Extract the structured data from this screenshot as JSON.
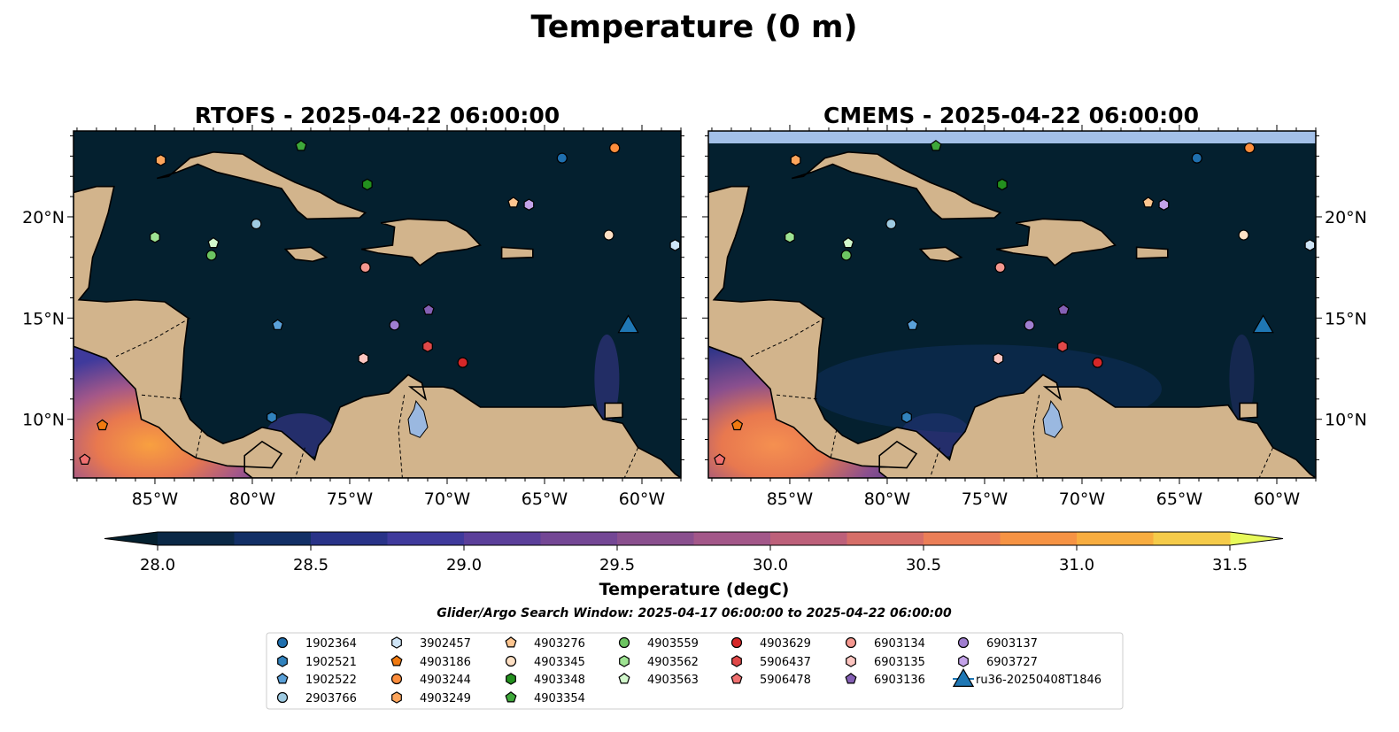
{
  "figure_title": "Temperature (0 m)",
  "panels": [
    {
      "title": "RTOFS - 2025-04-22 06:00:00",
      "model": "RTOFS",
      "nodata_strip": false
    },
    {
      "title": "CMEMS - 2025-04-22 06:00:00",
      "model": "CMEMS",
      "nodata_strip": true
    }
  ],
  "map_extent": {
    "lon": [
      -89.18,
      -58.0
    ],
    "lat": [
      7.1,
      24.24
    ]
  },
  "x_ticks": [
    {
      "lon": -85,
      "label": "85°W"
    },
    {
      "lon": -80,
      "label": "80°W"
    },
    {
      "lon": -75,
      "label": "75°W"
    },
    {
      "lon": -70,
      "label": "70°W"
    },
    {
      "lon": -65,
      "label": "65°W"
    },
    {
      "lon": -60,
      "label": "60°W"
    }
  ],
  "y_ticks": [
    {
      "lat": 10,
      "label": "10°N"
    },
    {
      "lat": 15,
      "label": "15°N"
    },
    {
      "lat": 20,
      "label": "20°N"
    }
  ],
  "colors": {
    "ocean": "#04202f",
    "land": "#d2b48c",
    "lake": "#9ab8e0",
    "nodata": "#a3c0e8"
  },
  "colorbar": {
    "label": "Temperature (degC)",
    "min": 28.0,
    "max": 31.5,
    "step": 0.25,
    "ticks": [
      "28.0",
      "28.5",
      "29.0",
      "29.5",
      "30.0",
      "30.5",
      "31.0",
      "31.5"
    ],
    "tick_values": [
      28.0,
      28.5,
      29.0,
      29.5,
      30.0,
      30.5,
      31.0,
      31.5
    ],
    "colors": [
      "#0a2846",
      "#122f66",
      "#293388",
      "#3f3a9c",
      "#5b3f9a",
      "#744795",
      "#8a4f8e",
      "#a35789",
      "#bd607a",
      "#d66e68",
      "#eb7e57",
      "#f69344",
      "#f8ad40",
      "#f5cb4a"
    ],
    "under": "#04202f",
    "over": "#e8fa5b"
  },
  "search_window": "Glider/Argo Search Window: 2025-04-17 06:00:00 to 2025-04-22 06:00:00",
  "markers": [
    {
      "id": "1902364",
      "shape": "circle",
      "color": "#1f6fae",
      "lon": -64.1,
      "lat": 22.9
    },
    {
      "id": "1902521",
      "shape": "hexagon",
      "color": "#3182bd",
      "lon": -79.0,
      "lat": 10.1
    },
    {
      "id": "1902522",
      "shape": "pentagon",
      "color": "#5aa0d8",
      "lon": -78.7,
      "lat": 14.65
    },
    {
      "id": "2903766",
      "shape": "circle",
      "color": "#9ecae1",
      "lon": -79.8,
      "lat": 19.65
    },
    {
      "id": "3902457",
      "shape": "hexagon",
      "color": "#cfe5f7",
      "lon": -58.3,
      "lat": 18.6
    },
    {
      "id": "4903186",
      "shape": "pentagon",
      "color": "#f07a10",
      "lon": -87.7,
      "lat": 9.7
    },
    {
      "id": "4903244",
      "shape": "circle",
      "color": "#fd8d3c",
      "lon": -61.4,
      "lat": 23.4
    },
    {
      "id": "4903249",
      "shape": "hexagon",
      "color": "#fda55c",
      "lon": -84.7,
      "lat": 22.8
    },
    {
      "id": "4903276",
      "shape": "pentagon",
      "color": "#fdc58f",
      "lon": -66.6,
      "lat": 20.7
    },
    {
      "id": "4903345",
      "shape": "circle",
      "color": "#fee0c4",
      "lon": -61.7,
      "lat": 19.1
    },
    {
      "id": "4903348",
      "shape": "hexagon",
      "color": "#23901e",
      "lon": -74.1,
      "lat": 21.6
    },
    {
      "id": "4903354",
      "shape": "pentagon",
      "color": "#3ea83a",
      "lon": -77.5,
      "lat": 23.5
    },
    {
      "id": "4903559",
      "shape": "circle",
      "color": "#6cc461",
      "lon": -82.1,
      "lat": 18.1
    },
    {
      "id": "4903562",
      "shape": "hexagon",
      "color": "#9ee392",
      "lon": -85.0,
      "lat": 19.0
    },
    {
      "id": "4903563",
      "shape": "pentagon",
      "color": "#d2f8cc",
      "lon": -82.0,
      "lat": 18.7
    },
    {
      "id": "4903629",
      "shape": "circle",
      "color": "#d62728",
      "lon": -69.2,
      "lat": 12.8
    },
    {
      "id": "5906437",
      "shape": "hexagon",
      "color": "#e04848",
      "lon": -71.0,
      "lat": 13.6
    },
    {
      "id": "5906478",
      "shape": "pentagon",
      "color": "#f07070",
      "lon": -88.6,
      "lat": 8.0
    },
    {
      "id": "6903134",
      "shape": "circle",
      "color": "#f4978f",
      "lon": -74.2,
      "lat": 17.5
    },
    {
      "id": "6903135",
      "shape": "hexagon",
      "color": "#fcc5c0",
      "lon": -74.3,
      "lat": 13.0
    },
    {
      "id": "6903136",
      "shape": "pentagon",
      "color": "#8560b5",
      "lon": -70.95,
      "lat": 15.4
    },
    {
      "id": "6903137",
      "shape": "circle",
      "color": "#a07ed0",
      "lon": -72.7,
      "lat": 14.65
    },
    {
      "id": "6903727",
      "shape": "hexagon",
      "color": "#c3a2e8",
      "lon": -65.8,
      "lat": 20.6
    },
    {
      "id": "ru36-20250408T1846",
      "shape": "triangle",
      "color": "#1f77b4",
      "lon": -60.7,
      "lat": 14.65
    }
  ]
}
